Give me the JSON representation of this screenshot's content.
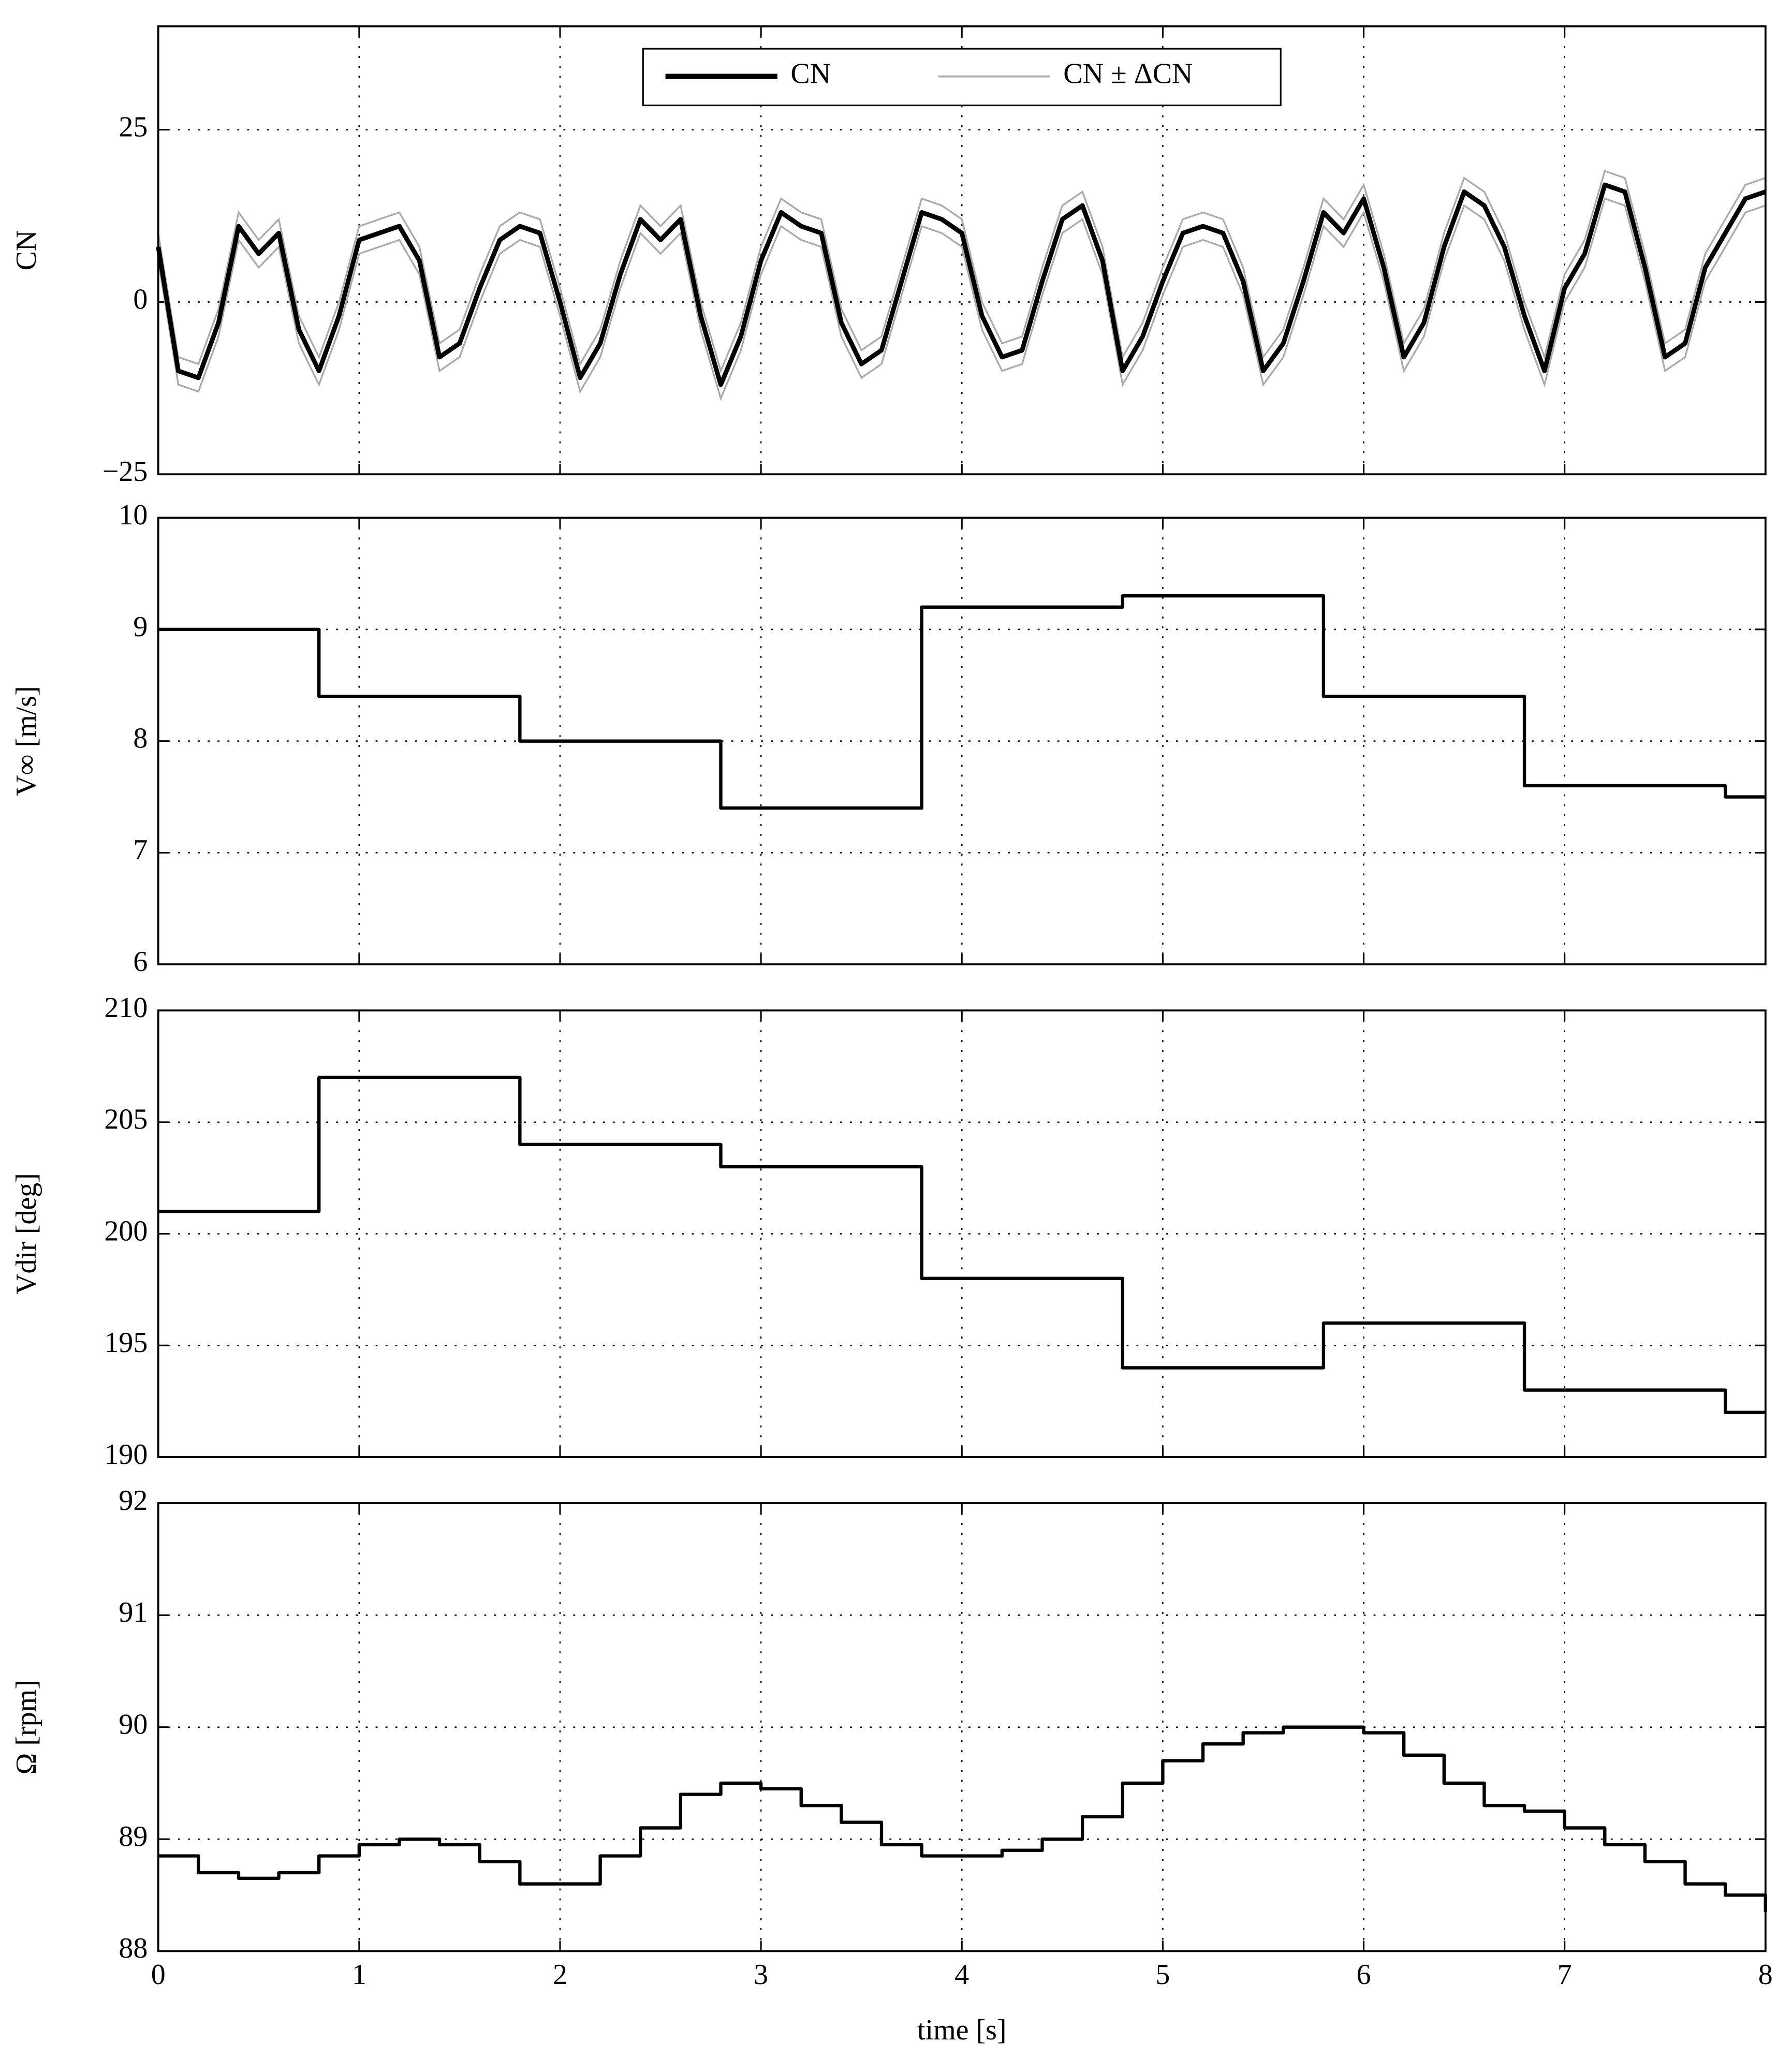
{
  "chart_data": [
    {
      "type": "line",
      "ylabel": "CN",
      "xlim": [
        0,
        8
      ],
      "xticks": [
        0,
        1,
        2,
        3,
        4,
        5,
        6,
        7,
        8
      ],
      "ylim": [
        -25,
        40
      ],
      "yticks": [
        {
          "value": -25,
          "label": "−25"
        },
        0,
        25
      ],
      "grid": true,
      "legend": "top",
      "x": [
        0,
        0.1,
        0.2,
        0.3,
        0.4,
        0.5,
        0.6,
        0.7,
        0.8,
        0.9,
        1,
        1.1,
        1.2,
        1.3,
        1.4,
        1.5,
        1.6,
        1.7,
        1.8,
        1.9,
        2,
        2.1,
        2.2,
        2.3,
        2.4,
        2.5,
        2.6,
        2.7,
        2.8,
        2.9,
        3,
        3.1,
        3.2,
        3.3,
        3.4,
        3.5,
        3.6,
        3.7,
        3.8,
        3.9,
        4,
        4.1,
        4.2,
        4.3,
        4.4,
        4.5,
        4.6,
        4.7,
        4.8,
        4.9,
        5,
        5.1,
        5.2,
        5.3,
        5.4,
        5.5,
        5.6,
        5.7,
        5.8,
        5.9,
        6,
        6.1,
        6.2,
        6.3,
        6.4,
        6.5,
        6.6,
        6.7,
        6.8,
        6.9,
        7,
        7.1,
        7.2,
        7.3,
        7.4,
        7.5,
        7.6,
        7.7,
        7.8,
        7.9,
        8
      ],
      "series": [
        {
          "name": "CN ± ΔCN",
          "color": "#aaaaaa",
          "upper": [
            10,
            -8,
            -9,
            -1,
            13,
            9,
            12,
            -2,
            -8,
            0,
            11,
            12,
            13,
            8,
            -6,
            -4,
            4,
            11,
            13,
            12,
            2,
            -9,
            -4,
            6,
            14,
            11,
            14,
            0,
            -10,
            -3,
            8,
            15,
            13,
            12,
            -1,
            -7,
            -5,
            5,
            15,
            14,
            12,
            0,
            -6,
            -5,
            5,
            14,
            16,
            8,
            -8,
            -3,
            5,
            12,
            13,
            12,
            5,
            -8,
            -4,
            5,
            15,
            12,
            17,
            7,
            -6,
            -1,
            10,
            18,
            16,
            10,
            0,
            -8,
            4,
            9,
            19,
            18,
            7,
            -6,
            -4,
            7,
            12,
            17,
            18
          ],
          "lower": [
            6,
            -12,
            -13,
            -5,
            9,
            5,
            8,
            -6,
            -12,
            -4,
            7,
            8,
            9,
            4,
            -10,
            -8,
            0,
            7,
            9,
            8,
            -2,
            -13,
            -8,
            2,
            10,
            7,
            10,
            -4,
            -14,
            -7,
            4,
            11,
            9,
            8,
            -5,
            -11,
            -9,
            1,
            11,
            10,
            8,
            -4,
            -10,
            -9,
            1,
            10,
            12,
            4,
            -12,
            -7,
            1,
            8,
            9,
            8,
            1,
            -12,
            -8,
            1,
            11,
            8,
            13,
            3,
            -10,
            -5,
            6,
            14,
            12,
            6,
            -4,
            -12,
            0,
            5,
            15,
            14,
            3,
            -10,
            -8,
            3,
            8,
            13,
            14
          ]
        },
        {
          "name": "CN",
          "color": "#000000",
          "values": [
            8,
            -10,
            -11,
            -3,
            11,
            7,
            10,
            -4,
            -10,
            -2,
            9,
            10,
            11,
            6,
            -8,
            -6,
            2,
            9,
            11,
            10,
            0,
            -11,
            -6,
            4,
            12,
            9,
            12,
            -2,
            -12,
            -5,
            6,
            13,
            11,
            10,
            -3,
            -9,
            -7,
            3,
            13,
            12,
            10,
            -2,
            -8,
            -7,
            3,
            12,
            14,
            6,
            -10,
            -5,
            3,
            10,
            11,
            10,
            3,
            -10,
            -6,
            3,
            13,
            10,
            15,
            5,
            -8,
            -3,
            8,
            16,
            14,
            8,
            -2,
            -10,
            2,
            7,
            17,
            16,
            5,
            -8,
            -6,
            5,
            10,
            15,
            16
          ]
        }
      ]
    },
    {
      "type": "line",
      "ylabel": "V∞ [m/s]",
      "step": true,
      "xlim": [
        0,
        8
      ],
      "xticks": [
        0,
        1,
        2,
        3,
        4,
        5,
        6,
        7,
        8
      ],
      "ylim": [
        6,
        10
      ],
      "yticks": [
        6,
        7,
        8,
        9,
        10
      ],
      "grid": true,
      "x": [
        0,
        0.8,
        1.8,
        2.8,
        3.8,
        4.8,
        5.8,
        6.8,
        7.8,
        8
      ],
      "series": [
        {
          "color": "#000000",
          "values": [
            9,
            8.4,
            8,
            7.4,
            9.2,
            9.3,
            8.4,
            7.6,
            7.5,
            7.5
          ]
        }
      ]
    },
    {
      "type": "line",
      "ylabel": "Vdir [deg]",
      "step": true,
      "xlim": [
        0,
        8
      ],
      "xticks": [
        0,
        1,
        2,
        3,
        4,
        5,
        6,
        7,
        8
      ],
      "ylim": [
        190,
        210
      ],
      "yticks": [
        190,
        195,
        200,
        205,
        210
      ],
      "grid": true,
      "x": [
        0,
        0.8,
        1.8,
        2.8,
        3.8,
        4.8,
        5.8,
        6.8,
        7.8,
        8
      ],
      "series": [
        {
          "color": "#000000",
          "values": [
            201,
            207,
            204,
            203,
            198,
            194,
            196,
            193,
            192,
            192
          ]
        }
      ]
    },
    {
      "type": "line",
      "ylabel": "Ω [rpm]",
      "xlabel": "time [s]",
      "step": true,
      "xlim": [
        0,
        8
      ],
      "xticks": [
        0,
        1,
        2,
        3,
        4,
        5,
        6,
        7,
        8
      ],
      "ylim": [
        88,
        92
      ],
      "yticks": [
        88,
        89,
        90,
        91,
        92
      ],
      "grid": true,
      "x": [
        0,
        0.2,
        0.4,
        0.6,
        0.8,
        1,
        1.2,
        1.4,
        1.6,
        1.8,
        2,
        2.2,
        2.4,
        2.6,
        2.8,
        3,
        3.2,
        3.4,
        3.6,
        3.8,
        4,
        4.2,
        4.4,
        4.6,
        4.8,
        5,
        5.2,
        5.4,
        5.6,
        5.8,
        6,
        6.2,
        6.4,
        6.6,
        6.8,
        7,
        7.2,
        7.4,
        7.6,
        7.8,
        8
      ],
      "series": [
        {
          "color": "#000000",
          "values": [
            88.85,
            88.7,
            88.65,
            88.7,
            88.85,
            88.95,
            89,
            88.95,
            88.8,
            88.6,
            88.6,
            88.85,
            89.1,
            89.4,
            89.5,
            89.45,
            89.3,
            89.15,
            88.95,
            88.85,
            88.85,
            88.9,
            89,
            89.2,
            89.5,
            89.7,
            89.85,
            89.95,
            90,
            90,
            89.95,
            89.75,
            89.5,
            89.3,
            89.25,
            89.1,
            88.95,
            88.8,
            88.6,
            88.5,
            88.35
          ]
        }
      ]
    }
  ]
}
